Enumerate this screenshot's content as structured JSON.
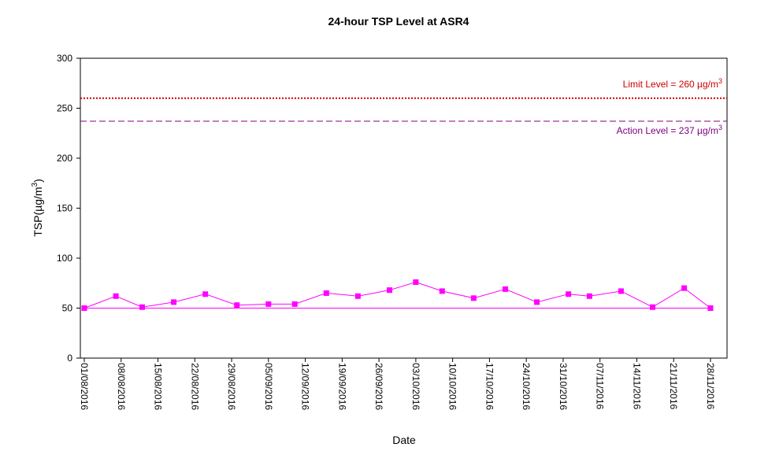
{
  "chart_data": {
    "type": "line",
    "title": "24-hour TSP Level at ASR4",
    "xlabel": "Date",
    "ylabel": "TSP(µg/m3)",
    "ylabel_parts": {
      "main": "TSP(µg/m",
      "sup": "3",
      "end": ")"
    },
    "ylim": [
      0,
      300
    ],
    "y_ticks": [
      "0",
      "50",
      "100",
      "150",
      "200",
      "250",
      "300"
    ],
    "xlim": [
      "2016-08-01",
      "2016-11-28"
    ],
    "x_ticks": [
      "01/08/2016",
      "08/08/2016",
      "15/08/2016",
      "22/08/2016",
      "29/08/2016",
      "05/09/2016",
      "12/09/2016",
      "19/09/2016",
      "26/09/2016",
      "03/10/2016",
      "10/10/2016",
      "17/10/2016",
      "24/10/2016",
      "31/10/2016",
      "07/11/2016",
      "14/11/2016",
      "21/11/2016",
      "28/11/2016"
    ],
    "grid": false,
    "series": [
      {
        "color": "#ff00ff",
        "x": [
          "2016-08-01",
          "2016-08-07",
          "2016-08-12",
          "2016-08-18",
          "2016-08-24",
          "2016-08-30",
          "2016-09-05",
          "2016-09-10",
          "2016-09-16",
          "2016-09-22",
          "2016-09-28",
          "2016-10-03",
          "2016-10-08",
          "2016-10-14",
          "2016-10-20",
          "2016-10-26",
          "2016-11-01",
          "2016-11-05",
          "2016-11-11",
          "2016-11-17",
          "2016-11-23",
          "2016-11-28"
        ],
        "values": [
          50,
          62,
          51,
          56,
          64,
          53,
          54,
          54,
          65,
          62,
          68,
          76,
          67,
          60,
          69,
          56,
          64,
          62,
          67,
          51,
          70,
          50
        ],
        "marker": "square"
      }
    ],
    "reference_lines": [
      {
        "label_main": "Limit Level = 260 µg/m",
        "label_sup": "3",
        "value": 260,
        "color": "#cc0000",
        "style": "dotted"
      },
      {
        "label_main": "Action Level = 237 µg/m",
        "label_sup": "3",
        "value": 237,
        "color": "#800080",
        "style": "dashed"
      }
    ],
    "baseline": {
      "value": 50,
      "color": "#ff00ff"
    }
  }
}
